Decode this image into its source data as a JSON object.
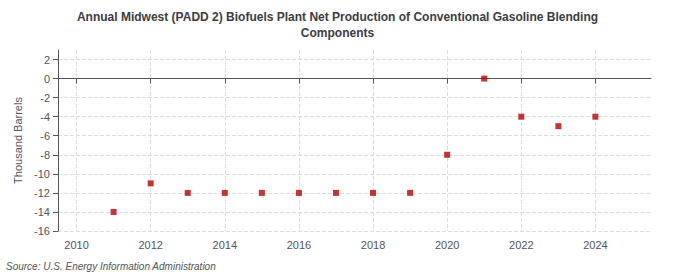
{
  "chart_data": {
    "type": "scatter",
    "title": "Annual Midwest (PADD 2) Biofuels Plant Net Production of Conventional Gasoline Blending\nComponents",
    "ylabel": "Thousand Barrels",
    "source": "Source: U.S. Energy Information Administration",
    "x": [
      2011,
      2012,
      2013,
      2014,
      2015,
      2016,
      2017,
      2018,
      2019,
      2020,
      2021,
      2022,
      2023,
      2024
    ],
    "values": [
      -14,
      -11,
      -12,
      -12,
      -12,
      -12,
      -12,
      -12,
      -12,
      -8,
      0,
      -4,
      -5,
      -4
    ],
    "color": "#bb0000",
    "marker": "square",
    "xlim": [
      2009.5,
      2025.5
    ],
    "ylim": [
      -16,
      3
    ],
    "xticks": [
      2010,
      2012,
      2014,
      2016,
      2018,
      2020,
      2022,
      2024
    ],
    "yticks": [
      2,
      0,
      -2,
      -4,
      -6,
      -8,
      -10,
      -12,
      -14,
      -16
    ],
    "grid": true
  }
}
